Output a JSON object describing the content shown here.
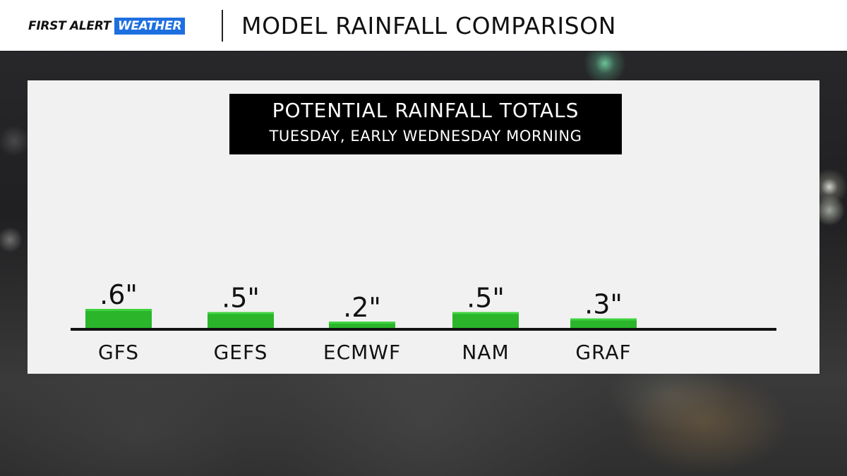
{
  "header": {
    "logo_first": "FIRST ALERT",
    "logo_weather": "WEATHER",
    "title": "MODEL RAINFALL COMPARISON"
  },
  "panel": {
    "title_line1": "POTENTIAL RAINFALL TOTALS",
    "title_line2": "TUESDAY, EARLY WEDNESDAY MORNING"
  },
  "colors": {
    "bar": "#2bb52b",
    "bar_top": "#3fd23f",
    "axis": "#111111",
    "logo_blue": "#1d6fe0"
  },
  "chart_data": {
    "type": "bar",
    "categories": [
      "GFS",
      "GEFS",
      "ECMWF",
      "NAM",
      "GRAF"
    ],
    "values": [
      0.6,
      0.5,
      0.2,
      0.5,
      0.3
    ],
    "value_labels": [
      ".6\"",
      ".5\"",
      ".2\"",
      ".5\"",
      ".3\""
    ],
    "unit": "inches",
    "ylim": [
      0,
      6
    ],
    "grid": false,
    "legend": "none"
  }
}
